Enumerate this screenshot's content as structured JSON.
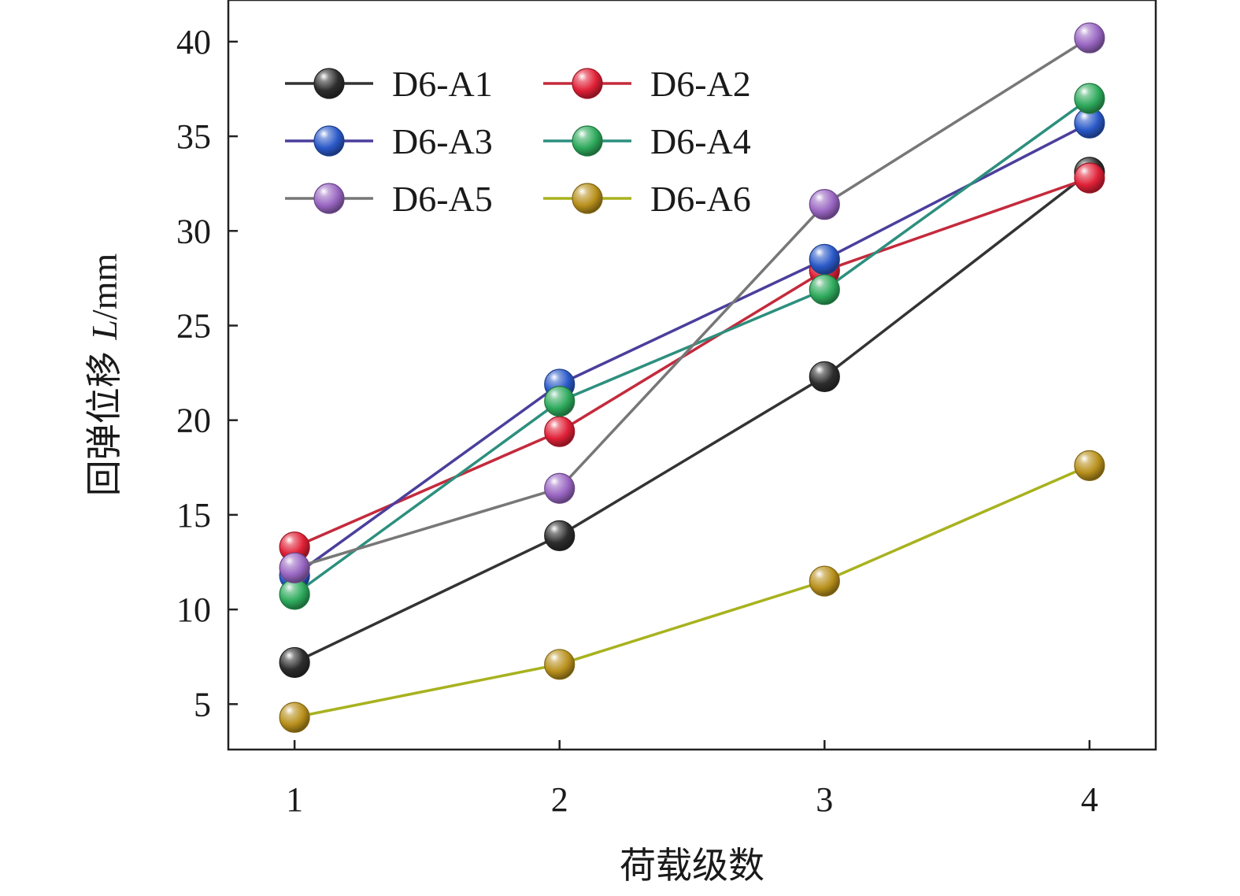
{
  "chart_data": {
    "type": "line",
    "title": "",
    "xlabel": "荷载级数",
    "ylabel": {
      "prefix": "回弹位移 ",
      "symbol": "L",
      "unit": "/mm"
    },
    "x": [
      1,
      2,
      3,
      4
    ],
    "x_tick_labels": [
      "1",
      "2",
      "3",
      "4"
    ],
    "xlim": [
      0.75,
      4.25
    ],
    "ylim": [
      2.6,
      42.2
    ],
    "y_ticks": [
      5,
      10,
      15,
      20,
      25,
      30,
      35,
      40
    ],
    "y_tick_labels": [
      "5",
      "10",
      "15",
      "20",
      "25",
      "30",
      "35",
      "40"
    ],
    "grid": false,
    "legend_position": "top-left",
    "series": [
      {
        "name": "D6-A1",
        "values": [
          7.2,
          13.9,
          22.3,
          33.1
        ],
        "line_color": "#333333",
        "marker_color": "#2d2d2d"
      },
      {
        "name": "D6-A2",
        "values": [
          13.3,
          19.4,
          27.9,
          32.8
        ],
        "line_color": "#c42a3c",
        "marker_color": "#e02036"
      },
      {
        "name": "D6-A3",
        "values": [
          11.8,
          21.9,
          28.5,
          35.7
        ],
        "line_color": "#4a3f9c",
        "marker_color": "#2a59c8"
      },
      {
        "name": "D6-A4",
        "values": [
          10.8,
          21.0,
          26.9,
          37.0
        ],
        "line_color": "#2d8f7e",
        "marker_color": "#2eaa5c"
      },
      {
        "name": "D6-A5",
        "values": [
          12.2,
          16.4,
          31.4,
          40.2
        ],
        "line_color": "#777777",
        "marker_color": "#9966c2"
      },
      {
        "name": "D6-A6",
        "values": [
          4.3,
          7.1,
          11.5,
          17.6
        ],
        "line_color": "#a8b21e",
        "marker_color": "#b8901c"
      }
    ]
  }
}
